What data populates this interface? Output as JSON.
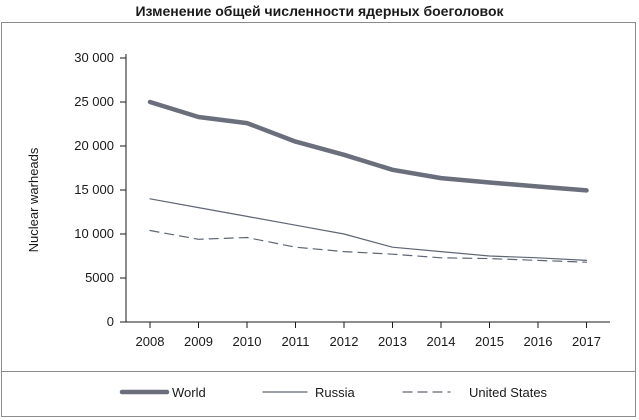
{
  "chart_data": {
    "type": "line",
    "title": "Изменение общей численности ядерных боеголовок",
    "xlabel": "",
    "ylabel": "Nuclear warheads",
    "x": [
      "2008",
      "2009",
      "2010",
      "2011",
      "2012",
      "2013",
      "2014",
      "2015",
      "2016",
      "2017"
    ],
    "ylim": [
      0,
      30000
    ],
    "yticks": [
      0,
      5000,
      10000,
      15000,
      20000,
      25000,
      30000
    ],
    "ytick_labels": [
      "0",
      "5000",
      "10 000",
      "15 000",
      "20 000",
      "25 000",
      "30 000"
    ],
    "grid": false,
    "legend_position": "bottom",
    "series": [
      {
        "name": "World",
        "style": "thick",
        "color": "#6b6f7c",
        "values": [
          25000,
          23300,
          22600,
          20500,
          19000,
          17300,
          16350,
          15850,
          15400,
          14950
        ]
      },
      {
        "name": "Russia",
        "style": "thin",
        "color": "#5f6674",
        "values": [
          14000,
          13000,
          12000,
          11000,
          10000,
          8500,
          8000,
          7500,
          7300,
          7000
        ]
      },
      {
        "name": "United States",
        "style": "dashed",
        "color": "#5f6674",
        "values": [
          10400,
          9400,
          9600,
          8500,
          8000,
          7700,
          7300,
          7200,
          7000,
          6800
        ]
      }
    ]
  }
}
